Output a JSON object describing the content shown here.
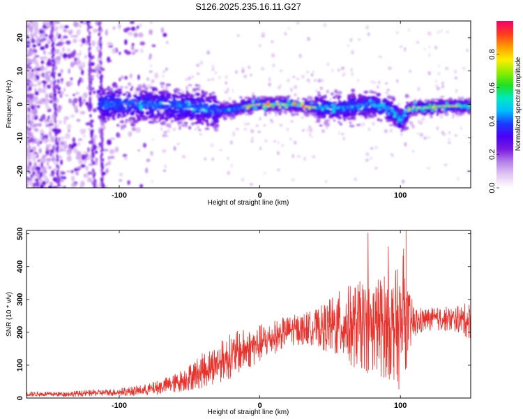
{
  "chart_data": [
    {
      "type": "heatmap",
      "title": "S126.2025.235.16.11.G27",
      "xlabel": "Height of straight line (km)",
      "ylabel": "Frequency (Hz)",
      "xlim": [
        -166,
        150
      ],
      "ylim": [
        -25,
        25
      ],
      "xticks": [
        -100,
        0,
        100
      ],
      "yticks": [
        -20,
        -10,
        0,
        10,
        20
      ],
      "colorbar": {
        "label": "Normalized spectral amplitude",
        "range": [
          0.0,
          1.0
        ],
        "ticks": [
          "0.0",
          "0.2",
          "0.4",
          "0.6",
          "0.8"
        ],
        "colormap": [
          "#ffffff",
          "#e3c9f3",
          "#b682ea",
          "#7a1ce0",
          "#4a00f5",
          "#1a3cff",
          "#00bfff",
          "#00e8c0",
          "#20e020",
          "#90ee00",
          "#ffee00",
          "#ff9a00",
          "#ff3a20",
          "#f3006a"
        ]
      },
      "ridge_description": "frequency ridge near 0 Hz, dipping to about -5 Hz near 100 km",
      "ridge": {
        "x": [
          -110,
          -100,
          -80,
          -60,
          -40,
          -30,
          -20,
          -10,
          0,
          10,
          20,
          30,
          40,
          50,
          60,
          70,
          80,
          90,
          95,
          100,
          105,
          110,
          120,
          130,
          140,
          150
        ],
        "y": [
          0,
          0,
          0,
          -0.5,
          -1,
          -2,
          -1.5,
          -0.5,
          0,
          0,
          0,
          -0.5,
          -1,
          -1,
          -1,
          -0.5,
          0,
          -1,
          -2,
          -5,
          -2,
          -1,
          -1,
          -0.5,
          -0.5,
          -0.5
        ]
      }
    },
    {
      "type": "line",
      "xlabel": "Height of straight line (km)",
      "ylabel": "SNR (10 * v/v)",
      "xlim": [
        -166,
        150
      ],
      "ylim": [
        0,
        510
      ],
      "xticks": [
        -100,
        0,
        100
      ],
      "yticks": [
        0,
        100,
        200,
        300,
        400,
        500
      ],
      "color": "#e8322c",
      "envelope": {
        "x": [
          -166,
          -140,
          -120,
          -100,
          -80,
          -60,
          -40,
          -20,
          0,
          20,
          40,
          60,
          80,
          95,
          100,
          105,
          110,
          120,
          140,
          150
        ],
        "mean": [
          12,
          12,
          15,
          18,
          25,
          45,
          85,
          130,
          165,
          205,
          215,
          220,
          220,
          220,
          210,
          225,
          230,
          240,
          240,
          235
        ],
        "spread": [
          8,
          8,
          10,
          12,
          18,
          30,
          55,
          70,
          60,
          45,
          55,
          120,
          150,
          170,
          190,
          120,
          50,
          35,
          40,
          60
        ]
      }
    }
  ]
}
